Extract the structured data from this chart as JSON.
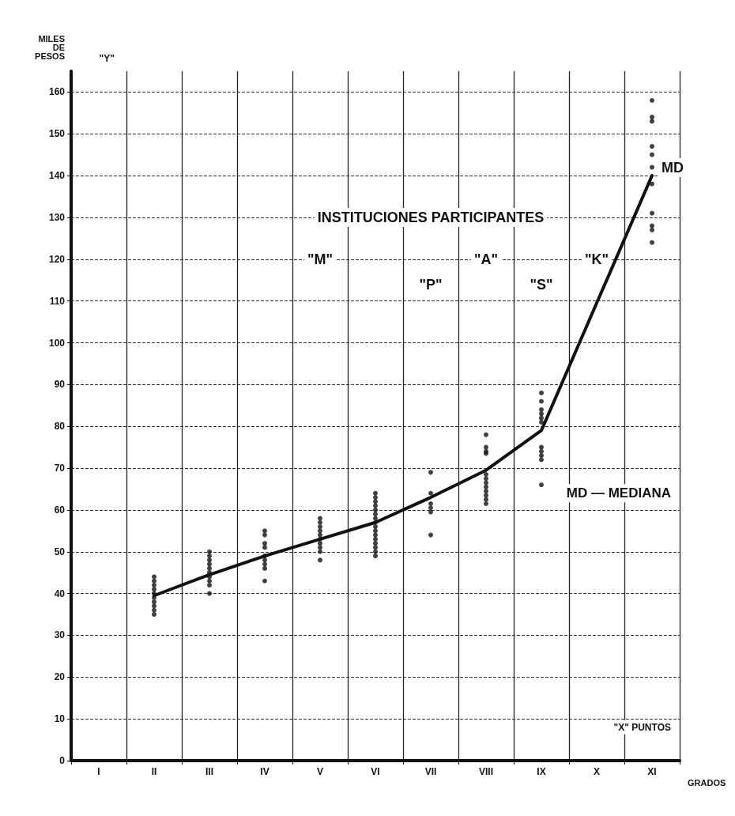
{
  "chart_data": {
    "type": "scatter",
    "xlabel": "GRADOS",
    "ylabel": "MILES DE PESOS",
    "categories": [
      "I",
      "II",
      "III",
      "IV",
      "V",
      "VI",
      "VII",
      "VIII",
      "IX",
      "X",
      "XI"
    ],
    "ylim": [
      0,
      165
    ],
    "yticks": [
      0,
      10,
      20,
      30,
      40,
      50,
      60,
      70,
      80,
      90,
      100,
      110,
      120,
      130,
      140,
      150,
      160
    ],
    "grid": true,
    "marker": "circle",
    "series": [
      {
        "color": "#111111",
        "x": [
          "II",
          "II",
          "II",
          "II",
          "II",
          "II",
          "II",
          "II",
          "II",
          "II",
          "III",
          "III",
          "III",
          "III",
          "III",
          "III",
          "III",
          "III",
          "III",
          "III",
          "IV",
          "IV",
          "IV",
          "IV",
          "IV",
          "IV",
          "IV",
          "IV",
          "IV",
          "V",
          "V",
          "V",
          "V",
          "V",
          "V",
          "V",
          "V",
          "V",
          "V",
          "VI",
          "VI",
          "VI",
          "VI",
          "VI",
          "VI",
          "VI",
          "VI",
          "VI",
          "VI",
          "VI",
          "VI",
          "VI",
          "VI",
          "VI",
          "VI",
          "VII",
          "VII",
          "VII",
          "VII",
          "VII",
          "VII",
          "VIII",
          "VIII",
          "VIII",
          "VIII",
          "VIII",
          "VIII",
          "VIII",
          "VIII",
          "VIII",
          "VIII",
          "VIII",
          "VIII",
          "IX",
          "IX",
          "IX",
          "IX",
          "IX",
          "IX",
          "IX",
          "IX",
          "IX",
          "IX",
          "IX",
          "XI",
          "XI",
          "XI",
          "XI",
          "XI",
          "XI",
          "XI",
          "XI",
          "XI",
          "XI",
          "XI"
        ],
        "values": [
          44,
          43,
          42,
          41,
          40,
          39,
          38,
          37,
          36,
          35,
          50,
          49,
          48,
          47,
          46,
          45,
          44,
          43,
          42,
          40,
          55,
          54,
          52,
          51,
          49,
          48,
          47,
          46,
          43,
          58,
          57,
          56,
          55,
          54,
          53,
          52,
          51,
          50,
          48,
          64,
          63,
          62,
          61,
          60,
          59,
          58,
          57,
          56,
          55,
          54,
          53,
          52,
          51,
          50,
          49,
          69,
          64,
          61.5,
          60.5,
          59.5,
          54,
          78,
          75,
          74,
          73.5,
          68.5,
          67.5,
          66.5,
          65.5,
          64.5,
          63.5,
          62.5,
          61.5,
          88,
          86,
          84,
          83,
          82,
          81,
          75,
          74,
          73,
          72,
          66,
          158,
          154,
          153,
          147,
          145,
          142,
          138,
          131,
          128,
          127,
          124
        ]
      },
      {
        "type": "line",
        "color": "#111111",
        "marker": "none",
        "line_style": "solid",
        "values": [
          null,
          39.5,
          44.5,
          49,
          53,
          57,
          63,
          69.5,
          79,
          null,
          140
        ]
      }
    ],
    "annotations": [
      "INSTITUCIONES PARTICIPANTES",
      "\"M\"",
      "\"P\"",
      "\"A\"",
      "\"S\"",
      "\"K\"",
      {
        "text": "MD",
        "x": "XI",
        "y": 140
      },
      "MD — MEDIANA",
      "\"Y\"",
      "\"X\" PUNTOS"
    ]
  }
}
